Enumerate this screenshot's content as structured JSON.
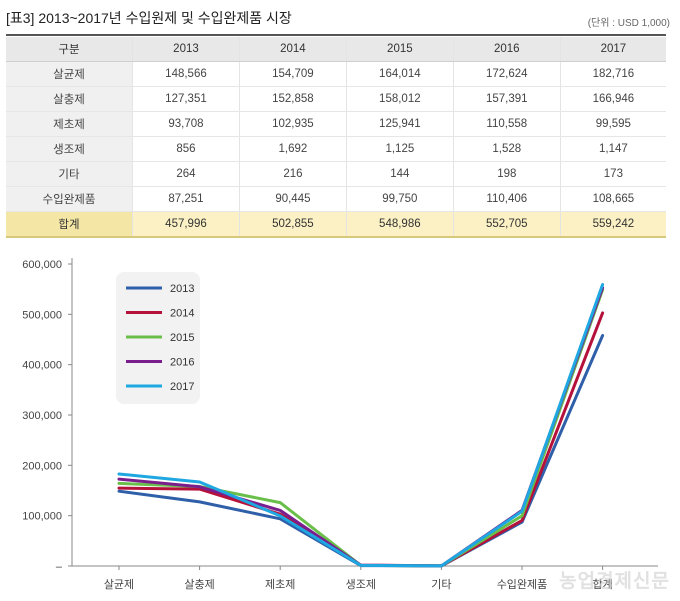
{
  "header": {
    "title": "[표3] 2013~2017년 수입원제 및 수입완제품 시장",
    "unit": "(단위 : USD 1,000)"
  },
  "table": {
    "columns": [
      "구분",
      "2013",
      "2014",
      "2015",
      "2016",
      "2017"
    ],
    "rows": [
      {
        "label": "살균제",
        "values": [
          "148,566",
          "154,709",
          "164,014",
          "172,624",
          "182,716"
        ]
      },
      {
        "label": "살충제",
        "values": [
          "127,351",
          "152,858",
          "158,012",
          "157,391",
          "166,946"
        ]
      },
      {
        "label": "제초제",
        "values": [
          "93,708",
          "102,935",
          "125,941",
          "110,558",
          "99,595"
        ]
      },
      {
        "label": "생조제",
        "values": [
          "856",
          "1,692",
          "1,125",
          "1,528",
          "1,147"
        ]
      },
      {
        "label": "기타",
        "values": [
          "264",
          "216",
          "144",
          "198",
          "173"
        ]
      },
      {
        "label": "수입완제품",
        "values": [
          "87,251",
          "90,445",
          "99,750",
          "110,406",
          "108,665"
        ]
      }
    ],
    "total": {
      "label": "합계",
      "values": [
        "457,996",
        "502,855",
        "548,986",
        "552,705",
        "559,242"
      ]
    }
  },
  "chart_data": {
    "type": "line",
    "title": "",
    "xlabel": "",
    "ylabel": "",
    "categories": [
      "살균제",
      "살충제",
      "제초제",
      "생조제",
      "기타",
      "수입완제품",
      "합계"
    ],
    "ylim": [
      0,
      600000
    ],
    "yticks": [
      0,
      100000,
      200000,
      300000,
      400000,
      500000,
      600000
    ],
    "ytick_labels": [
      "–",
      "100,000",
      "200,000",
      "300,000",
      "400,000",
      "500,000",
      "600,000"
    ],
    "grid": false,
    "legend_position": "top-left",
    "series": [
      {
        "name": "2013",
        "color": "#2e5fa8",
        "values": [
          148566,
          127351,
          93708,
          856,
          264,
          87251,
          457996
        ]
      },
      {
        "name": "2014",
        "color": "#b5123b",
        "values": [
          154709,
          152858,
          102935,
          1692,
          216,
          90445,
          502855
        ]
      },
      {
        "name": "2015",
        "color": "#6abf4b",
        "values": [
          164014,
          158012,
          125941,
          1125,
          144,
          99750,
          548986
        ]
      },
      {
        "name": "2016",
        "color": "#7a1e8e",
        "values": [
          172624,
          157391,
          110558,
          1528,
          198,
          110406,
          552705
        ]
      },
      {
        "name": "2017",
        "color": "#1ea7e0",
        "values": [
          182716,
          166946,
          99595,
          1147,
          173,
          108665,
          559242
        ]
      }
    ]
  },
  "watermark": "농업경제신문"
}
